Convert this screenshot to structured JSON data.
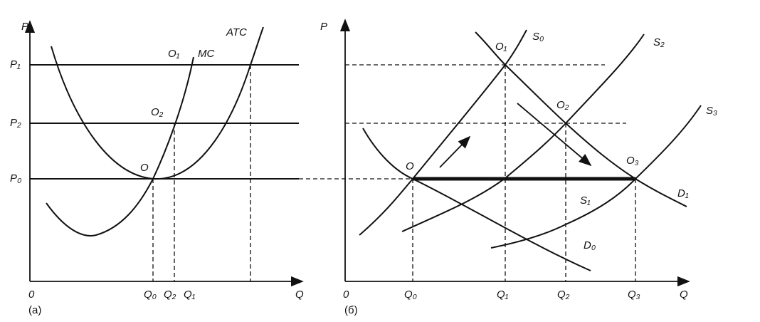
{
  "panels": [
    {
      "caption": "(a)",
      "axis": {
        "y": "P",
        "x": "Q",
        "origin": "0"
      },
      "price_levels": [
        "P₁",
        "P₂",
        "P₀"
      ],
      "curves": [
        "MC",
        "ATC"
      ],
      "points": [
        "O",
        "O₂",
        "O₁"
      ],
      "quantities": [
        "Q₀",
        "Q₂",
        "Q₁"
      ]
    },
    {
      "caption": "(б)",
      "axis": {
        "y": "P",
        "x": "Q",
        "origin": "0"
      },
      "curves": [
        "S₀",
        "S₂",
        "S₃",
        "S₁",
        "D₁",
        "D₀"
      ],
      "points": [
        "O",
        "O₁",
        "O₂",
        "O₃"
      ],
      "quantities": [
        "Q₀",
        "Q₁",
        "Q₂",
        "Q₃"
      ]
    }
  ]
}
